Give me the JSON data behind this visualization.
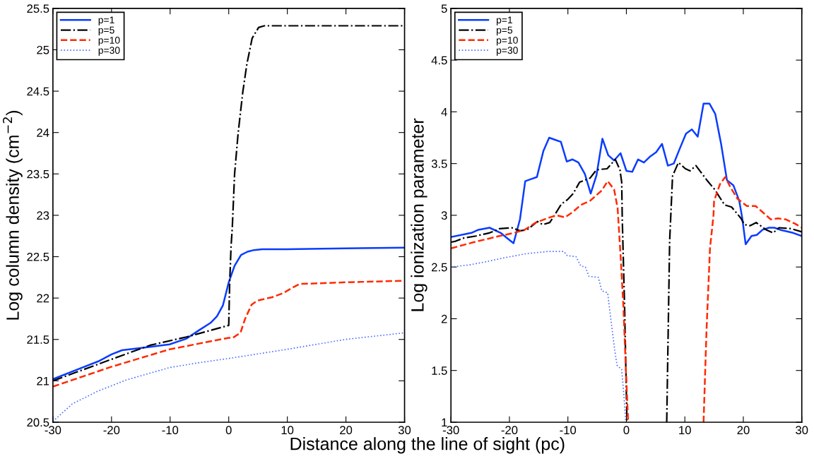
{
  "chart_data": [
    {
      "type": "line",
      "xlabel": "Distance along the line of sight (pc)",
      "ylabel": "Log column density (cm$^{−2}$)",
      "xlim": [
        -30,
        30
      ],
      "xticks": [
        -30,
        -20,
        -10,
        0,
        10,
        20,
        30
      ],
      "ylim": [
        20.5,
        25.5
      ],
      "yticks": [
        20.5,
        21,
        21.5,
        22,
        22.5,
        23,
        23.5,
        24,
        24.5,
        25,
        25.5
      ],
      "legend": "top left",
      "grid": false,
      "series": [
        {
          "name": "p=1",
          "color": "#0a3cff",
          "line_style": "solid",
          "x": [
            -30,
            -25,
            -22.1,
            -20,
            -18.2,
            -15.9,
            -13.4,
            -10.1,
            -7.2,
            -5.1,
            -3.1,
            -2.0,
            -1.0,
            0,
            1.0,
            2.1,
            3.2,
            4.3,
            5.7,
            9.9,
            19.9,
            30
          ],
          "values": [
            21.02,
            21.16,
            21.24,
            21.32,
            21.37,
            21.39,
            21.41,
            21.44,
            21.51,
            21.61,
            21.7,
            21.78,
            21.91,
            22.19,
            22.39,
            22.52,
            22.56,
            22.58,
            22.59,
            22.59,
            22.6,
            22.61
          ]
        },
        {
          "name": "p=5",
          "color": "#000000",
          "line_style": "dashdot",
          "x": [
            -30,
            -20,
            -13.4,
            -7.2,
            0,
            0.15,
            0.4,
            0.6,
            1.0,
            1.6,
            2.4,
            3.1,
            4.0,
            5.1,
            6.1,
            30
          ],
          "values": [
            21.0,
            21.26,
            21.43,
            21.53,
            21.67,
            22.16,
            22.63,
            22.84,
            23.5,
            23.99,
            24.49,
            24.83,
            25.14,
            25.27,
            25.29,
            25.29
          ]
        },
        {
          "name": "p=10",
          "color": "#ff2a00",
          "line_style": "dashed",
          "x": [
            -30,
            -20,
            -10.1,
            0,
            0.7,
            2.0,
            2.8,
            3.9,
            4.9,
            7.4,
            9.3,
            11.0,
            12.1,
            19.9,
            30
          ],
          "values": [
            20.93,
            21.17,
            21.38,
            21.52,
            21.52,
            21.58,
            21.75,
            21.92,
            21.97,
            22.01,
            22.06,
            22.13,
            22.17,
            22.19,
            22.21
          ]
        },
        {
          "name": "p=30",
          "color": "#4f6fff",
          "line_style": "dotted",
          "x": [
            -30,
            -26.7,
            -22.5,
            -17.5,
            -10.1,
            -5,
            0,
            9.9,
            19.9,
            30
          ],
          "values": [
            20.51,
            20.72,
            20.87,
            21.01,
            21.16,
            21.22,
            21.27,
            21.38,
            21.5,
            21.58
          ]
        }
      ]
    },
    {
      "type": "line",
      "ylabel": "Log ionization parameter",
      "xlim": [
        -30,
        30
      ],
      "xticks": [
        -30,
        -20,
        -10,
        0,
        10,
        20,
        30
      ],
      "ylim": [
        1,
        5
      ],
      "yticks": [
        1,
        1.5,
        2,
        2.5,
        3,
        3.5,
        4,
        4.5,
        5
      ],
      "legend": "top left",
      "grid": false,
      "series": [
        {
          "name": "p=1",
          "color": "#0a3cff",
          "line_style": "solid",
          "x": [
            -30,
            -26.5,
            -25.3,
            -23.4,
            -21.5,
            -20.4,
            -19.3,
            -18.2,
            -17.3,
            -16.3,
            -15.3,
            -14.2,
            -13.2,
            -12.2,
            -11.2,
            -10.2,
            -9.2,
            -8.2,
            -7.1,
            -6.1,
            -5.1,
            -4.1,
            -3.1,
            -2.1,
            -1.0,
            0.0,
            1.0,
            2.0,
            3.0,
            4.1,
            5.1,
            6.1,
            7.1,
            8.1,
            9.1,
            10.2,
            11.2,
            12.2,
            13.2,
            14.2,
            15.2,
            16.2,
            17.2,
            18.3,
            19.3,
            19.8,
            20.4,
            21.4,
            22.3,
            23.3,
            24.4,
            25.3,
            26.3,
            28.5,
            30
          ],
          "values": [
            2.79,
            2.83,
            2.86,
            2.88,
            2.83,
            2.78,
            2.73,
            2.96,
            3.33,
            3.35,
            3.37,
            3.62,
            3.75,
            3.73,
            3.71,
            3.52,
            3.54,
            3.51,
            3.4,
            3.21,
            3.39,
            3.74,
            3.58,
            3.53,
            3.6,
            3.43,
            3.42,
            3.54,
            3.51,
            3.57,
            3.61,
            3.69,
            3.48,
            3.5,
            3.64,
            3.79,
            3.83,
            3.76,
            4.08,
            4.08,
            3.98,
            3.69,
            3.34,
            3.29,
            3.14,
            2.98,
            2.72,
            2.8,
            2.81,
            2.86,
            2.88,
            2.88,
            2.86,
            2.83,
            2.8
          ]
        },
        {
          "name": "p=5",
          "color": "#000000",
          "line_style": "dashdot",
          "x": [
            -30,
            -29.2,
            -27.8,
            -25.7,
            -23.4,
            -21.7,
            -19.6,
            -18.2,
            -17,
            -15.2,
            -14.3,
            -13.1,
            -12.3,
            -11.1,
            -10.1,
            -9.1,
            -8.0,
            -6.2,
            -5.1,
            -3.3,
            -1.9,
            -1.1,
            -0.8,
            -0.7,
            -0.3,
            0.1,
            null,
            6.9,
            7.4,
            7.9,
            8.9,
            10.1,
            10.9,
            11.9,
            13.9,
            15.1,
            16.8,
            18.0,
            19.6,
            20.2,
            21.2,
            22.2,
            23.9,
            25.1,
            26.1,
            28.2,
            30
          ],
          "values": [
            2.74,
            2.75,
            2.78,
            2.8,
            2.83,
            2.87,
            2.88,
            2.85,
            2.86,
            2.94,
            2.91,
            2.93,
            3.0,
            3.11,
            3.15,
            3.21,
            3.32,
            3.36,
            3.44,
            3.45,
            3.54,
            3.44,
            3.32,
            2.96,
            2.1,
            1.0,
            null,
            1.0,
            2.75,
            3.38,
            3.51,
            3.45,
            3.43,
            3.48,
            3.33,
            3.25,
            3.1,
            3.08,
            2.97,
            2.91,
            2.9,
            2.93,
            2.86,
            2.83,
            2.88,
            2.87,
            2.84
          ]
        },
        {
          "name": "p=10",
          "color": "#ff2a00",
          "line_style": "dashed",
          "x": [
            -30,
            -26.1,
            -21.7,
            -19.2,
            -17.4,
            -15.5,
            -13.1,
            -11.9,
            -10.5,
            -9.2,
            -7.8,
            -6.2,
            -5.2,
            -4.2,
            -3.2,
            -2.1,
            -1.5,
            -1.0,
            -0.5,
            -0.1,
            0.3,
            null,
            13.2,
            13.7,
            14.3,
            14.9,
            15.0,
            16.0,
            16.9,
            17.8,
            19.0,
            20.6,
            22.1,
            23.3,
            24.7,
            25.9,
            27.3,
            28.8,
            30
          ],
          "values": [
            2.68,
            2.74,
            2.8,
            2.83,
            2.86,
            2.93,
            2.98,
            3.0,
            2.98,
            3.03,
            3.1,
            3.14,
            3.19,
            3.24,
            3.33,
            3.25,
            3.07,
            2.62,
            2.11,
            1.53,
            1.0,
            null,
            1.0,
            1.88,
            2.68,
            3.0,
            3.14,
            3.3,
            3.37,
            3.27,
            3.16,
            3.09,
            3.09,
            3.03,
            2.96,
            2.97,
            2.96,
            2.92,
            2.88
          ]
        },
        {
          "name": "p=30",
          "color": "#4f6fff",
          "line_style": "dotted",
          "x": [
            -30,
            -26.9,
            -24.1,
            -20.8,
            -17,
            -13.5,
            -10.7,
            -10.1,
            -8.6,
            -7.8,
            -7.0,
            -6.4,
            -4.8,
            -4.2,
            -3.2,
            -2.6,
            -2.0,
            -1.6,
            -0.8,
            -0.4,
            -0.1
          ],
          "values": [
            2.5,
            2.52,
            2.55,
            2.59,
            2.63,
            2.65,
            2.65,
            2.61,
            2.6,
            2.51,
            2.5,
            2.41,
            2.4,
            2.27,
            2.25,
            1.97,
            1.7,
            1.55,
            1.51,
            1.24,
            1.0
          ]
        }
      ]
    }
  ]
}
